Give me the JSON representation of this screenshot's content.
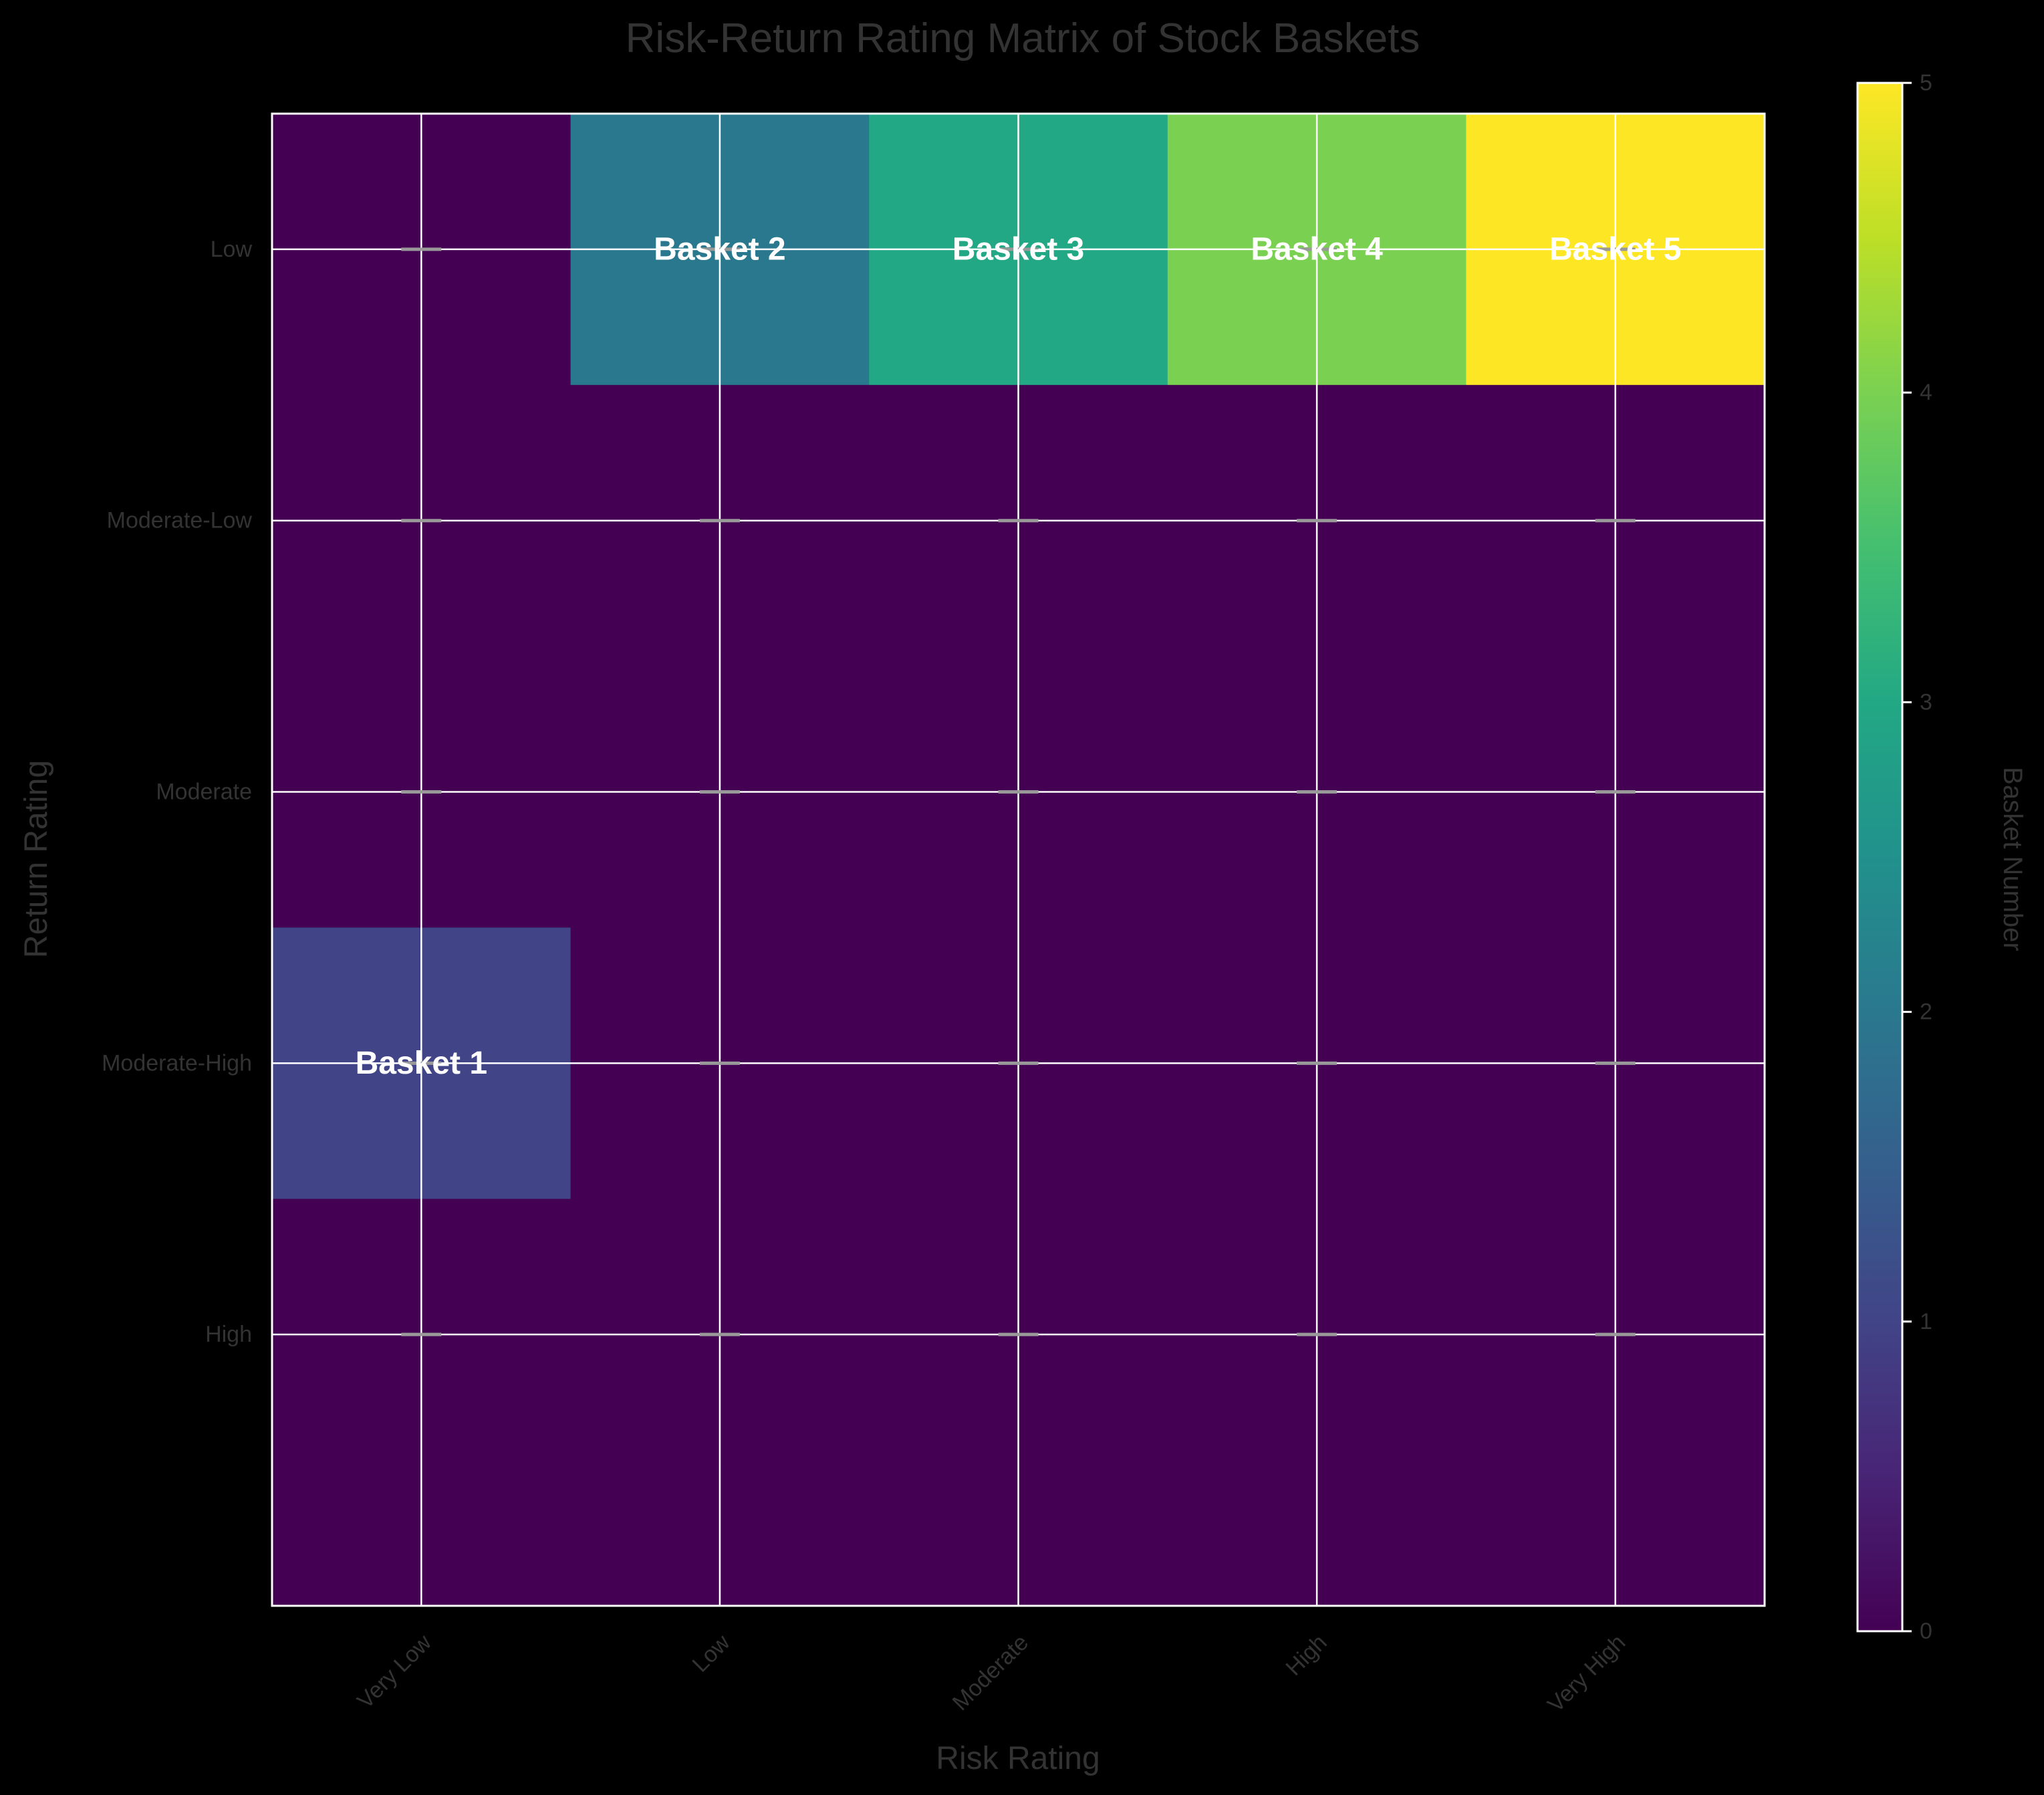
{
  "chart_data": {
    "type": "heatmap",
    "title": "Risk-Return Rating Matrix of Stock Baskets",
    "xlabel": "Risk Rating",
    "ylabel": "Return Rating",
    "x_categories": [
      "Very Low",
      "Low",
      "Moderate",
      "High",
      "Very High"
    ],
    "y_categories": [
      "Low",
      "Moderate-Low",
      "Moderate",
      "Moderate-High",
      "High"
    ],
    "matrix": [
      [
        0,
        2,
        3,
        4,
        5
      ],
      [
        0,
        0,
        0,
        0,
        0
      ],
      [
        0,
        0,
        0,
        0,
        0
      ],
      [
        1,
        0,
        0,
        0,
        0
      ],
      [
        0,
        0,
        0,
        0,
        0
      ]
    ],
    "annotations": [
      {
        "label": "Basket 1",
        "risk": "Very Low",
        "return": "Moderate-High"
      },
      {
        "label": "Basket 2",
        "risk": "Low",
        "return": "Low"
      },
      {
        "label": "Basket 3",
        "risk": "Moderate",
        "return": "Low"
      },
      {
        "label": "Basket 4",
        "risk": "High",
        "return": "Low"
      },
      {
        "label": "Basket 5",
        "risk": "Very High",
        "return": "Low"
      }
    ],
    "colorbar": {
      "label": "Basket Number",
      "range": [
        0,
        5
      ],
      "ticks": [
        "0",
        "1",
        "2",
        "3",
        "4",
        "5"
      ],
      "colormap": "viridis"
    },
    "grid": true,
    "colors": {
      "background": "#000000",
      "axis_text": "#333333",
      "annotation_text": "#ffffff",
      "grid": "#ffffff",
      "frame": "#ffffff",
      "tick_mark": "#999999"
    }
  }
}
